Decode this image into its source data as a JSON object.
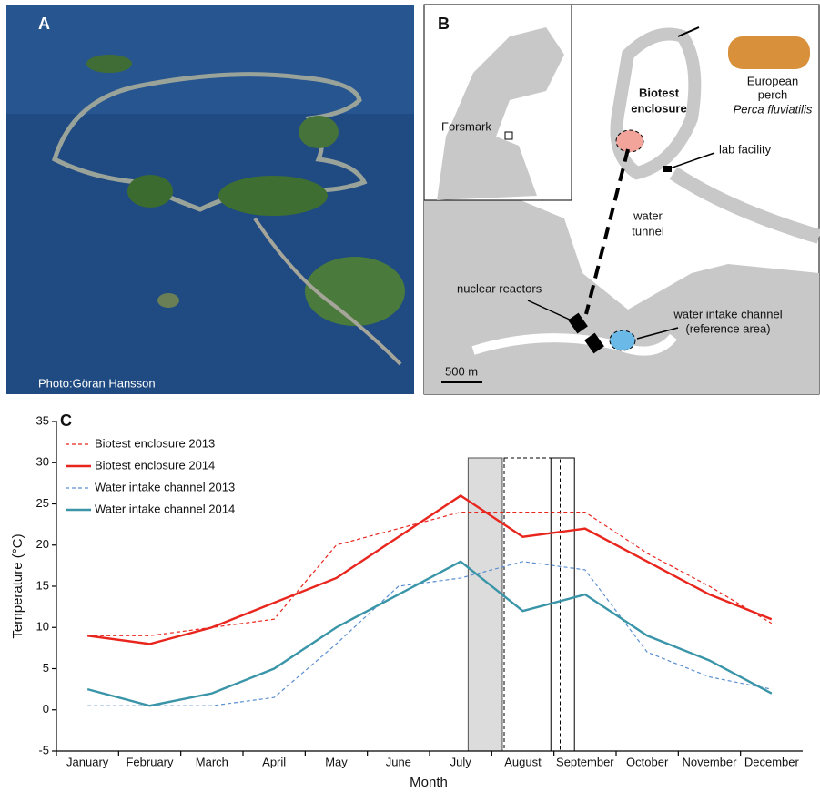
{
  "panel_a": {
    "label": "A",
    "credit": "Photo:Göran Hansson"
  },
  "panel_b": {
    "label": "B",
    "inset_label": "Forsmark",
    "enclosure": [
      "Biotest",
      "enclosure"
    ],
    "species": [
      "European",
      "perch",
      "Perca fluviatilis"
    ],
    "lab": "lab facility",
    "tunnel": [
      "water",
      "tunnel"
    ],
    "reactors": "nuclear reactors",
    "intake": [
      "water intake channel",
      "(reference area)"
    ],
    "scale": "500 m"
  },
  "chart_data": {
    "type": "line",
    "label": "C",
    "y_label": "Temperature (°C)",
    "x_label": "Month",
    "categories": [
      "January",
      "February",
      "March",
      "April",
      "May",
      "June",
      "July",
      "August",
      "September",
      "October",
      "November",
      "December"
    ],
    "ylim": [
      -5,
      35
    ],
    "yticks": [
      -5,
      0,
      5,
      10,
      15,
      20,
      25,
      30,
      35
    ],
    "series": [
      {
        "name": "Biotest enclosure 2013",
        "color": "#e8261e",
        "dash": true,
        "values": [
          9,
          9,
          10,
          11,
          20,
          22,
          24,
          24,
          24,
          19,
          15,
          10.5
        ]
      },
      {
        "name": "Biotest enclosure 2014",
        "color": "#e8261e",
        "dash": false,
        "values": [
          9,
          8,
          10,
          13,
          16,
          21,
          26,
          21,
          22,
          18,
          14,
          11
        ]
      },
      {
        "name": "Water intake channel 2013",
        "color": "#5b8fd0",
        "dash": true,
        "values": [
          0.5,
          0.5,
          0.5,
          1.5,
          8,
          15,
          16,
          18,
          17,
          7,
          4,
          2.5
        ]
      },
      {
        "name": "Water intake channel 2014",
        "color": "#3a95a8",
        "dash": false,
        "values": [
          2.5,
          0.5,
          2,
          5,
          10,
          14,
          18,
          12,
          14,
          9,
          6,
          2
        ]
      }
    ]
  }
}
